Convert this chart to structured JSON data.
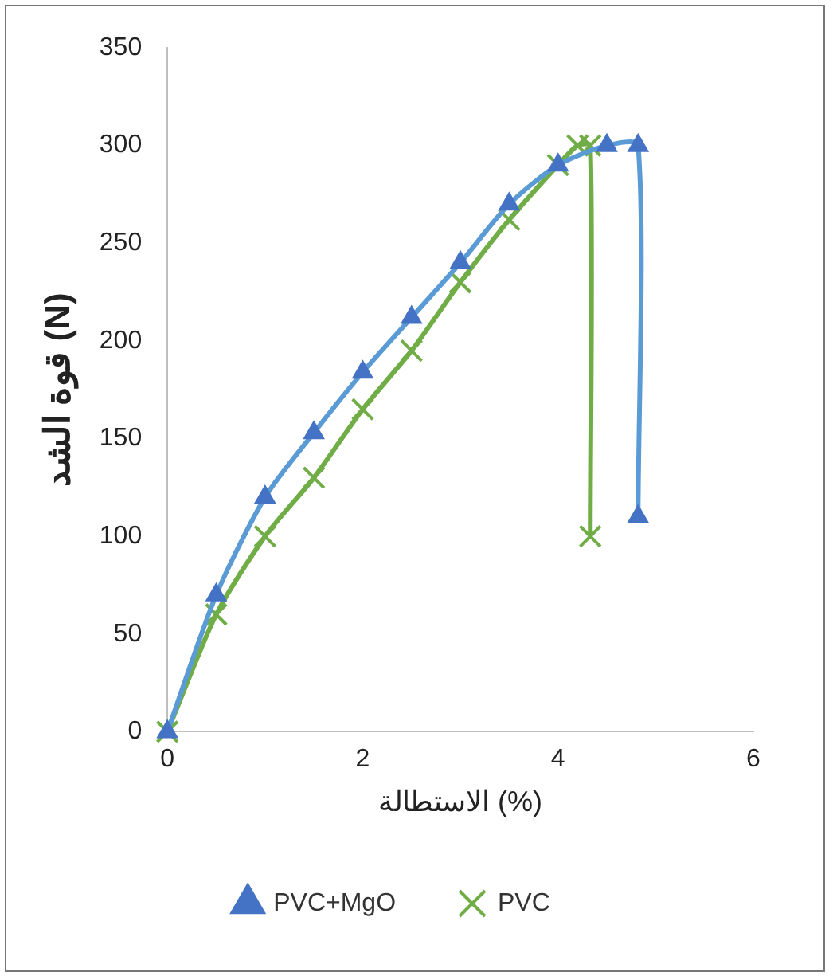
{
  "chart_data": {
    "type": "line",
    "xlabel": "الاستطالة (%)",
    "ylabel": "قوة الشد (N)",
    "xlim": [
      0,
      6
    ],
    "xticks": [
      0,
      2,
      4,
      6
    ],
    "ylim": [
      0,
      350
    ],
    "yticks": [
      0,
      50,
      100,
      150,
      200,
      250,
      300,
      350
    ],
    "grid": false,
    "legend": "bottom",
    "series": [
      {
        "name": "PVC+MgO",
        "color": "#5b9bd5",
        "marker": "triangle",
        "x": [
          0,
          0.5,
          1,
          1.5,
          2,
          2.5,
          3,
          3.5,
          4,
          4.5,
          4.82,
          4.82
        ],
        "values": [
          0,
          70,
          120,
          153,
          184,
          212,
          240,
          270,
          290,
          300,
          300,
          110
        ]
      },
      {
        "name": "PVC",
        "color": "#70ad47",
        "marker": "cross",
        "x": [
          0,
          0.5,
          1,
          1.5,
          2,
          2.5,
          3,
          3.5,
          4,
          4.2,
          4.33,
          4.33
        ],
        "values": [
          0,
          60,
          100,
          130,
          165,
          195,
          230,
          262,
          290,
          300,
          300,
          100
        ]
      }
    ]
  }
}
